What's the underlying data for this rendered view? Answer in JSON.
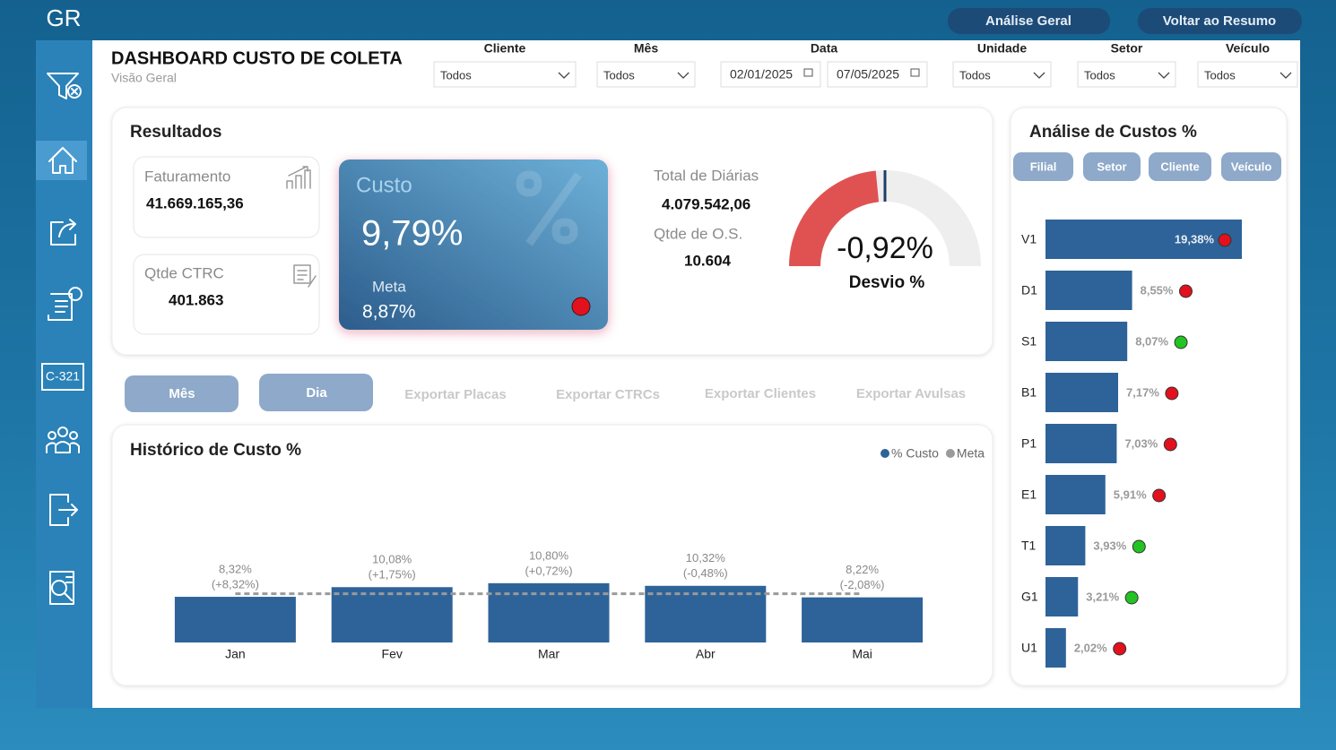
{
  "header": {
    "logo": "GR",
    "buttons": [
      "Análise Geral",
      "Voltar ao Resumo"
    ],
    "title": "DASHBOARD CUSTO DE  COLETA",
    "subtitle": "Visão Geral"
  },
  "sidebar": {
    "icon_text": "C-321"
  },
  "filters": [
    {
      "label": "Cliente",
      "value": "Todos"
    },
    {
      "label": "Mês",
      "value": "Todos"
    },
    {
      "label": "Data",
      "values": [
        "02/01/2025",
        "07/05/2025"
      ]
    },
    {
      "label": "Unidade",
      "value": "Todos"
    },
    {
      "label": "Setor",
      "value": "Todos"
    },
    {
      "label": "Veículo",
      "value": "Todos"
    }
  ],
  "resultados": {
    "title": "Resultados",
    "faturamento": {
      "label": "Faturamento",
      "value": "41.669.165,36"
    },
    "qtde_ctrc": {
      "label": "Qtde  CTRC",
      "value": "401.863"
    },
    "custo": {
      "label": "Custo",
      "value": "9,79%",
      "meta_label": "Meta",
      "meta_value": "8,87%"
    },
    "total_diarias": {
      "label": "Total de Diárias",
      "value": "4.079.542,06"
    },
    "qtde_os": {
      "label": "Qtde de O.S.",
      "value": "10.604"
    },
    "gauge": {
      "value": -0.92,
      "value_label": "-0,92%",
      "label": "Desvio %",
      "lim": [
        -15,
        15
      ]
    }
  },
  "tabs": [
    "Mês",
    "Dia"
  ],
  "exports": [
    "Exportar Placas",
    "Exportar CTRCs",
    "Exportar Clientes",
    "Exportar Avulsas"
  ],
  "chart_data": [
    {
      "type": "bar",
      "title": "Histórico de Custo %",
      "categories": [
        "Jan",
        "Fev",
        "Mar",
        "Abr",
        "Mai"
      ],
      "series": [
        {
          "name": "% Custo",
          "color": "#2e6399",
          "values": [
            8.32,
            10.08,
            10.8,
            10.32,
            8.22
          ],
          "value_labels": [
            "8,32%",
            "10,08%",
            "10,80%",
            "10,32%",
            "8,22%"
          ],
          "delta_labels": [
            "(+8,32%)",
            "(+1,75%)",
            "(+0,72%)",
            "(-0,48%)",
            "(-2,08%)"
          ]
        },
        {
          "name": "Meta",
          "color": "#9a9a9a",
          "values": [
            8.87,
            8.87,
            8.87,
            8.87,
            8.87
          ]
        }
      ],
      "ylim": [
        0,
        32
      ]
    },
    {
      "type": "barh",
      "title": "Análise de Custos %",
      "buttons": [
        "Filial",
        "Setor",
        "Cliente",
        "Veículo"
      ],
      "categories": [
        "V1",
        "D1",
        "S1",
        "B1",
        "P1",
        "E1",
        "T1",
        "G1",
        "U1"
      ],
      "values": [
        19.38,
        8.55,
        8.07,
        7.17,
        7.03,
        5.91,
        3.93,
        3.21,
        2.02
      ],
      "value_labels": [
        "19,38%",
        "8,55%",
        "8,07%",
        "7,17%",
        "7,03%",
        "5,91%",
        "3,93%",
        "3,21%",
        "2,02%"
      ],
      "status_colors": [
        "#e3101d",
        "#e3101d",
        "#22c322",
        "#e3101d",
        "#e3101d",
        "#e3101d",
        "#22c322",
        "#22c322",
        "#e3101d"
      ],
      "color": "#2e6399",
      "xlim": [
        0,
        20
      ]
    }
  ]
}
